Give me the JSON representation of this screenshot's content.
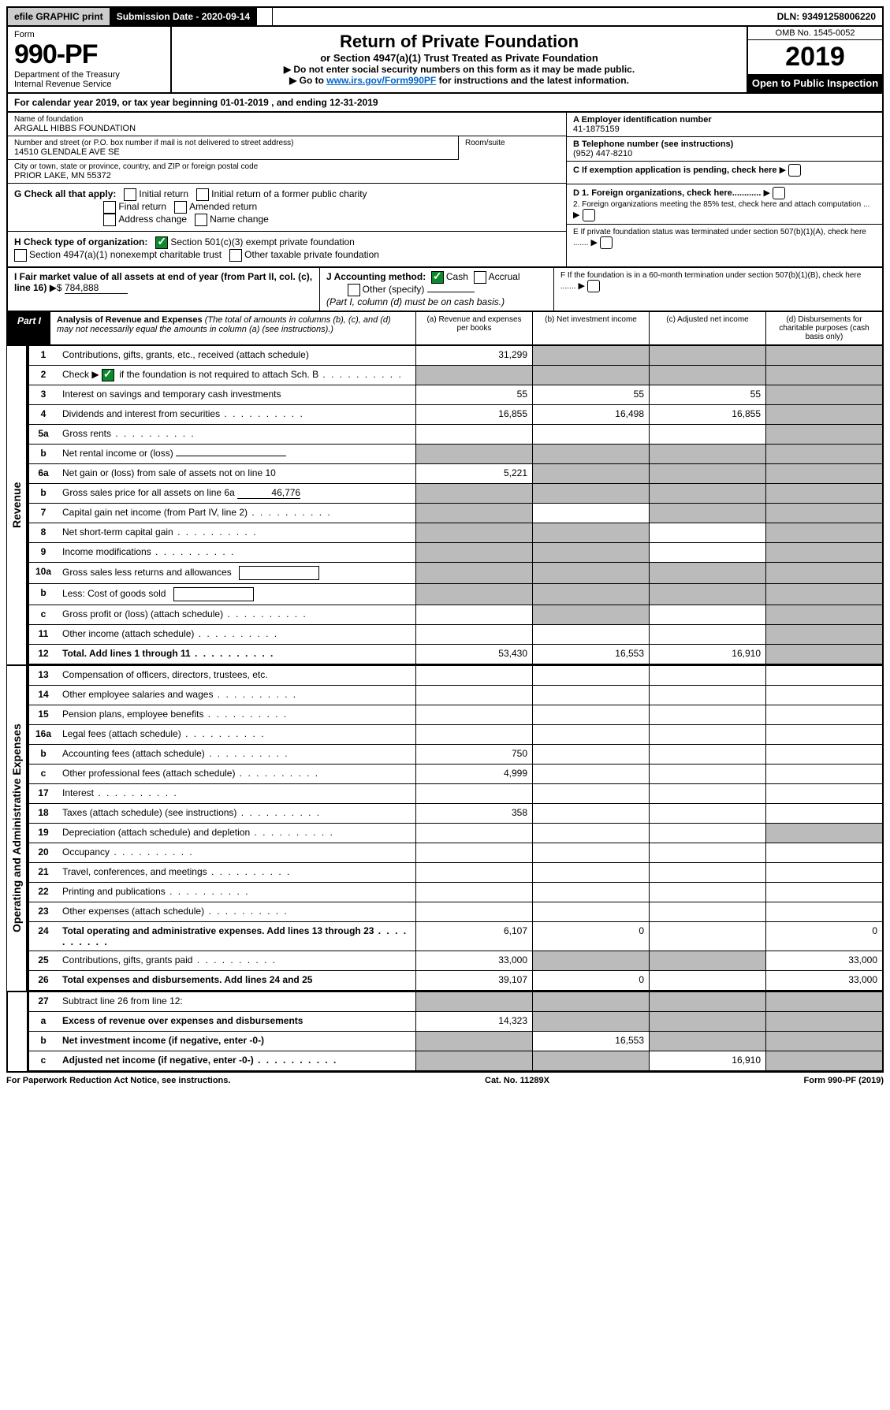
{
  "top": {
    "efile": "efile GRAPHIC print",
    "submission_label": "Submission Date - 2020-09-14",
    "dln": "DLN: 93491258006220"
  },
  "header": {
    "form_label": "Form",
    "form_num": "990-PF",
    "dept1": "Department of the Treasury",
    "dept2": "Internal Revenue Service",
    "title": "Return of Private Foundation",
    "subtitle": "or Section 4947(a)(1) Trust Treated as Private Foundation",
    "instr1": "▶ Do not enter social security numbers on this form as it may be made public.",
    "instr2_pre": "▶ Go to ",
    "instr2_link": "www.irs.gov/Form990PF",
    "instr2_post": " for instructions and the latest information.",
    "omb": "OMB No. 1545-0052",
    "year": "2019",
    "open": "Open to Public Inspection"
  },
  "cal_year": "For calendar year 2019, or tax year beginning 01-01-2019                                    , and ending 12-31-2019",
  "org": {
    "name_label": "Name of foundation",
    "name": "ARGALL HIBBS FOUNDATION",
    "addr_label": "Number and street (or P.O. box number if mail is not delivered to street address)",
    "room_label": "Room/suite",
    "addr": "14510 GLENDALE AVE SE",
    "city_label": "City or town, state or province, country, and ZIP or foreign postal code",
    "city": "PRIOR LAKE, MN  55372",
    "a_label": "A Employer identification number",
    "a_val": "41-1875159",
    "b_label": "B Telephone number (see instructions)",
    "b_val": "(952) 447-8210",
    "c_label": "C If exemption application is pending, check here",
    "d1": "D 1. Foreign organizations, check here............",
    "d2": "2. Foreign organizations meeting the 85% test, check here and attach computation ...",
    "e_label": "E  If private foundation status was terminated under section 507(b)(1)(A), check here .......",
    "f_label": "F  If the foundation is in a 60-month termination under section 507(b)(1)(B), check here ......."
  },
  "g": {
    "label": "G Check all that apply:",
    "opts": [
      "Initial return",
      "Initial return of a former public charity",
      "Final return",
      "Amended return",
      "Address change",
      "Name change"
    ]
  },
  "h": {
    "label": "H Check type of organization:",
    "opt1": "Section 501(c)(3) exempt private foundation",
    "opt2": "Section 4947(a)(1) nonexempt charitable trust",
    "opt3": "Other taxable private foundation"
  },
  "i": {
    "label": "I Fair market value of all assets at end of year (from Part II, col. (c), line 16)",
    "arrow": "▶$",
    "val": "784,888"
  },
  "j": {
    "label": "J Accounting method:",
    "cash": "Cash",
    "accrual": "Accrual",
    "other": "Other (specify)",
    "note": "(Part I, column (d) must be on cash basis.)"
  },
  "part1": {
    "label": "Part I",
    "title": "Analysis of Revenue and Expenses",
    "note": "(The total of amounts in columns (b), (c), and (d) may not necessarily equal the amounts in column (a) (see instructions).)",
    "col_a": "(a)   Revenue and expenses per books",
    "col_b": "(b)  Net investment income",
    "col_c": "(c)  Adjusted net income",
    "col_d": "(d)  Disbursements for charitable purposes (cash basis only)"
  },
  "side_revenue": "Revenue",
  "side_expenses": "Operating and Administrative Expenses",
  "rows": {
    "r1": {
      "n": "1",
      "d": "Contributions, gifts, grants, etc., received (attach schedule)",
      "a": "31,299"
    },
    "r2": {
      "n": "2",
      "d": "Check ▶",
      "d2": " if the foundation is not required to attach Sch. B"
    },
    "r3": {
      "n": "3",
      "d": "Interest on savings and temporary cash investments",
      "a": "55",
      "b": "55",
      "c": "55"
    },
    "r4": {
      "n": "4",
      "d": "Dividends and interest from securities",
      "a": "16,855",
      "b": "16,498",
      "c": "16,855"
    },
    "r5a": {
      "n": "5a",
      "d": "Gross rents"
    },
    "r5b": {
      "n": "b",
      "d": "Net rental income or (loss)"
    },
    "r6a": {
      "n": "6a",
      "d": "Net gain or (loss) from sale of assets not on line 10",
      "a": "5,221"
    },
    "r6b": {
      "n": "b",
      "d": "Gross sales price for all assets on line 6a",
      "v": "46,776"
    },
    "r7": {
      "n": "7",
      "d": "Capital gain net income (from Part IV, line 2)"
    },
    "r8": {
      "n": "8",
      "d": "Net short-term capital gain"
    },
    "r9": {
      "n": "9",
      "d": "Income modifications"
    },
    "r10a": {
      "n": "10a",
      "d": "Gross sales less returns and allowances"
    },
    "r10b": {
      "n": "b",
      "d": "Less: Cost of goods sold"
    },
    "r10c": {
      "n": "c",
      "d": "Gross profit or (loss) (attach schedule)"
    },
    "r11": {
      "n": "11",
      "d": "Other income (attach schedule)"
    },
    "r12": {
      "n": "12",
      "d": "Total. Add lines 1 through 11",
      "a": "53,430",
      "b": "16,553",
      "c": "16,910"
    },
    "r13": {
      "n": "13",
      "d": "Compensation of officers, directors, trustees, etc."
    },
    "r14": {
      "n": "14",
      "d": "Other employee salaries and wages"
    },
    "r15": {
      "n": "15",
      "d": "Pension plans, employee benefits"
    },
    "r16a": {
      "n": "16a",
      "d": "Legal fees (attach schedule)"
    },
    "r16b": {
      "n": "b",
      "d": "Accounting fees (attach schedule)",
      "a": "750"
    },
    "r16c": {
      "n": "c",
      "d": "Other professional fees (attach schedule)",
      "a": "4,999"
    },
    "r17": {
      "n": "17",
      "d": "Interest"
    },
    "r18": {
      "n": "18",
      "d": "Taxes (attach schedule) (see instructions)",
      "a": "358"
    },
    "r19": {
      "n": "19",
      "d": "Depreciation (attach schedule) and depletion"
    },
    "r20": {
      "n": "20",
      "d": "Occupancy"
    },
    "r21": {
      "n": "21",
      "d": "Travel, conferences, and meetings"
    },
    "r22": {
      "n": "22",
      "d": "Printing and publications"
    },
    "r23": {
      "n": "23",
      "d": "Other expenses (attach schedule)"
    },
    "r24": {
      "n": "24",
      "d": "Total operating and administrative expenses. Add lines 13 through 23",
      "a": "6,107",
      "b": "0",
      "dd": "0"
    },
    "r25": {
      "n": "25",
      "d": "Contributions, gifts, grants paid",
      "a": "33,000",
      "dd": "33,000"
    },
    "r26": {
      "n": "26",
      "d": "Total expenses and disbursements. Add lines 24 and 25",
      "a": "39,107",
      "b": "0",
      "dd": "33,000"
    },
    "r27": {
      "n": "27",
      "d": "Subtract line 26 from line 12:"
    },
    "r27a": {
      "n": "a",
      "d": "Excess of revenue over expenses and disbursements",
      "a": "14,323"
    },
    "r27b": {
      "n": "b",
      "d": "Net investment income (if negative, enter -0-)",
      "b": "16,553"
    },
    "r27c": {
      "n": "c",
      "d": "Adjusted net income (if negative, enter -0-)",
      "c": "16,910"
    }
  },
  "footer": {
    "left": "For Paperwork Reduction Act Notice, see instructions.",
    "mid": "Cat. No. 11289X",
    "right": "Form 990-PF (2019)"
  }
}
